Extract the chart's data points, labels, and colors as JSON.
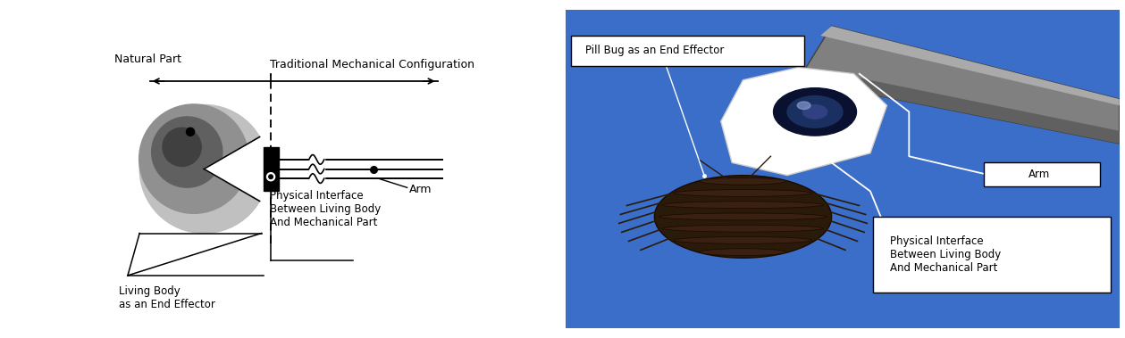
{
  "fig_width": 12.59,
  "fig_height": 3.79,
  "dpi": 100,
  "left_panel": {
    "natural_part_label": "Natural Part",
    "trad_mech_label": "Traditional Mechanical Configuration",
    "living_body_label": "Living Body\nas an End Effector",
    "physical_interface_label": "Physical Interface\nBetween Living Body\nAnd Mechanical Part",
    "arm_label": "Arm"
  },
  "right_panel": {
    "bg_color": "#3a6fc4",
    "pill_bug_label": "Pill Bug as an End Effector",
    "arm_label": "Arm",
    "physical_interface_label": "Physical Interface\nBetween Living Body\nAnd Mechanical Part"
  }
}
